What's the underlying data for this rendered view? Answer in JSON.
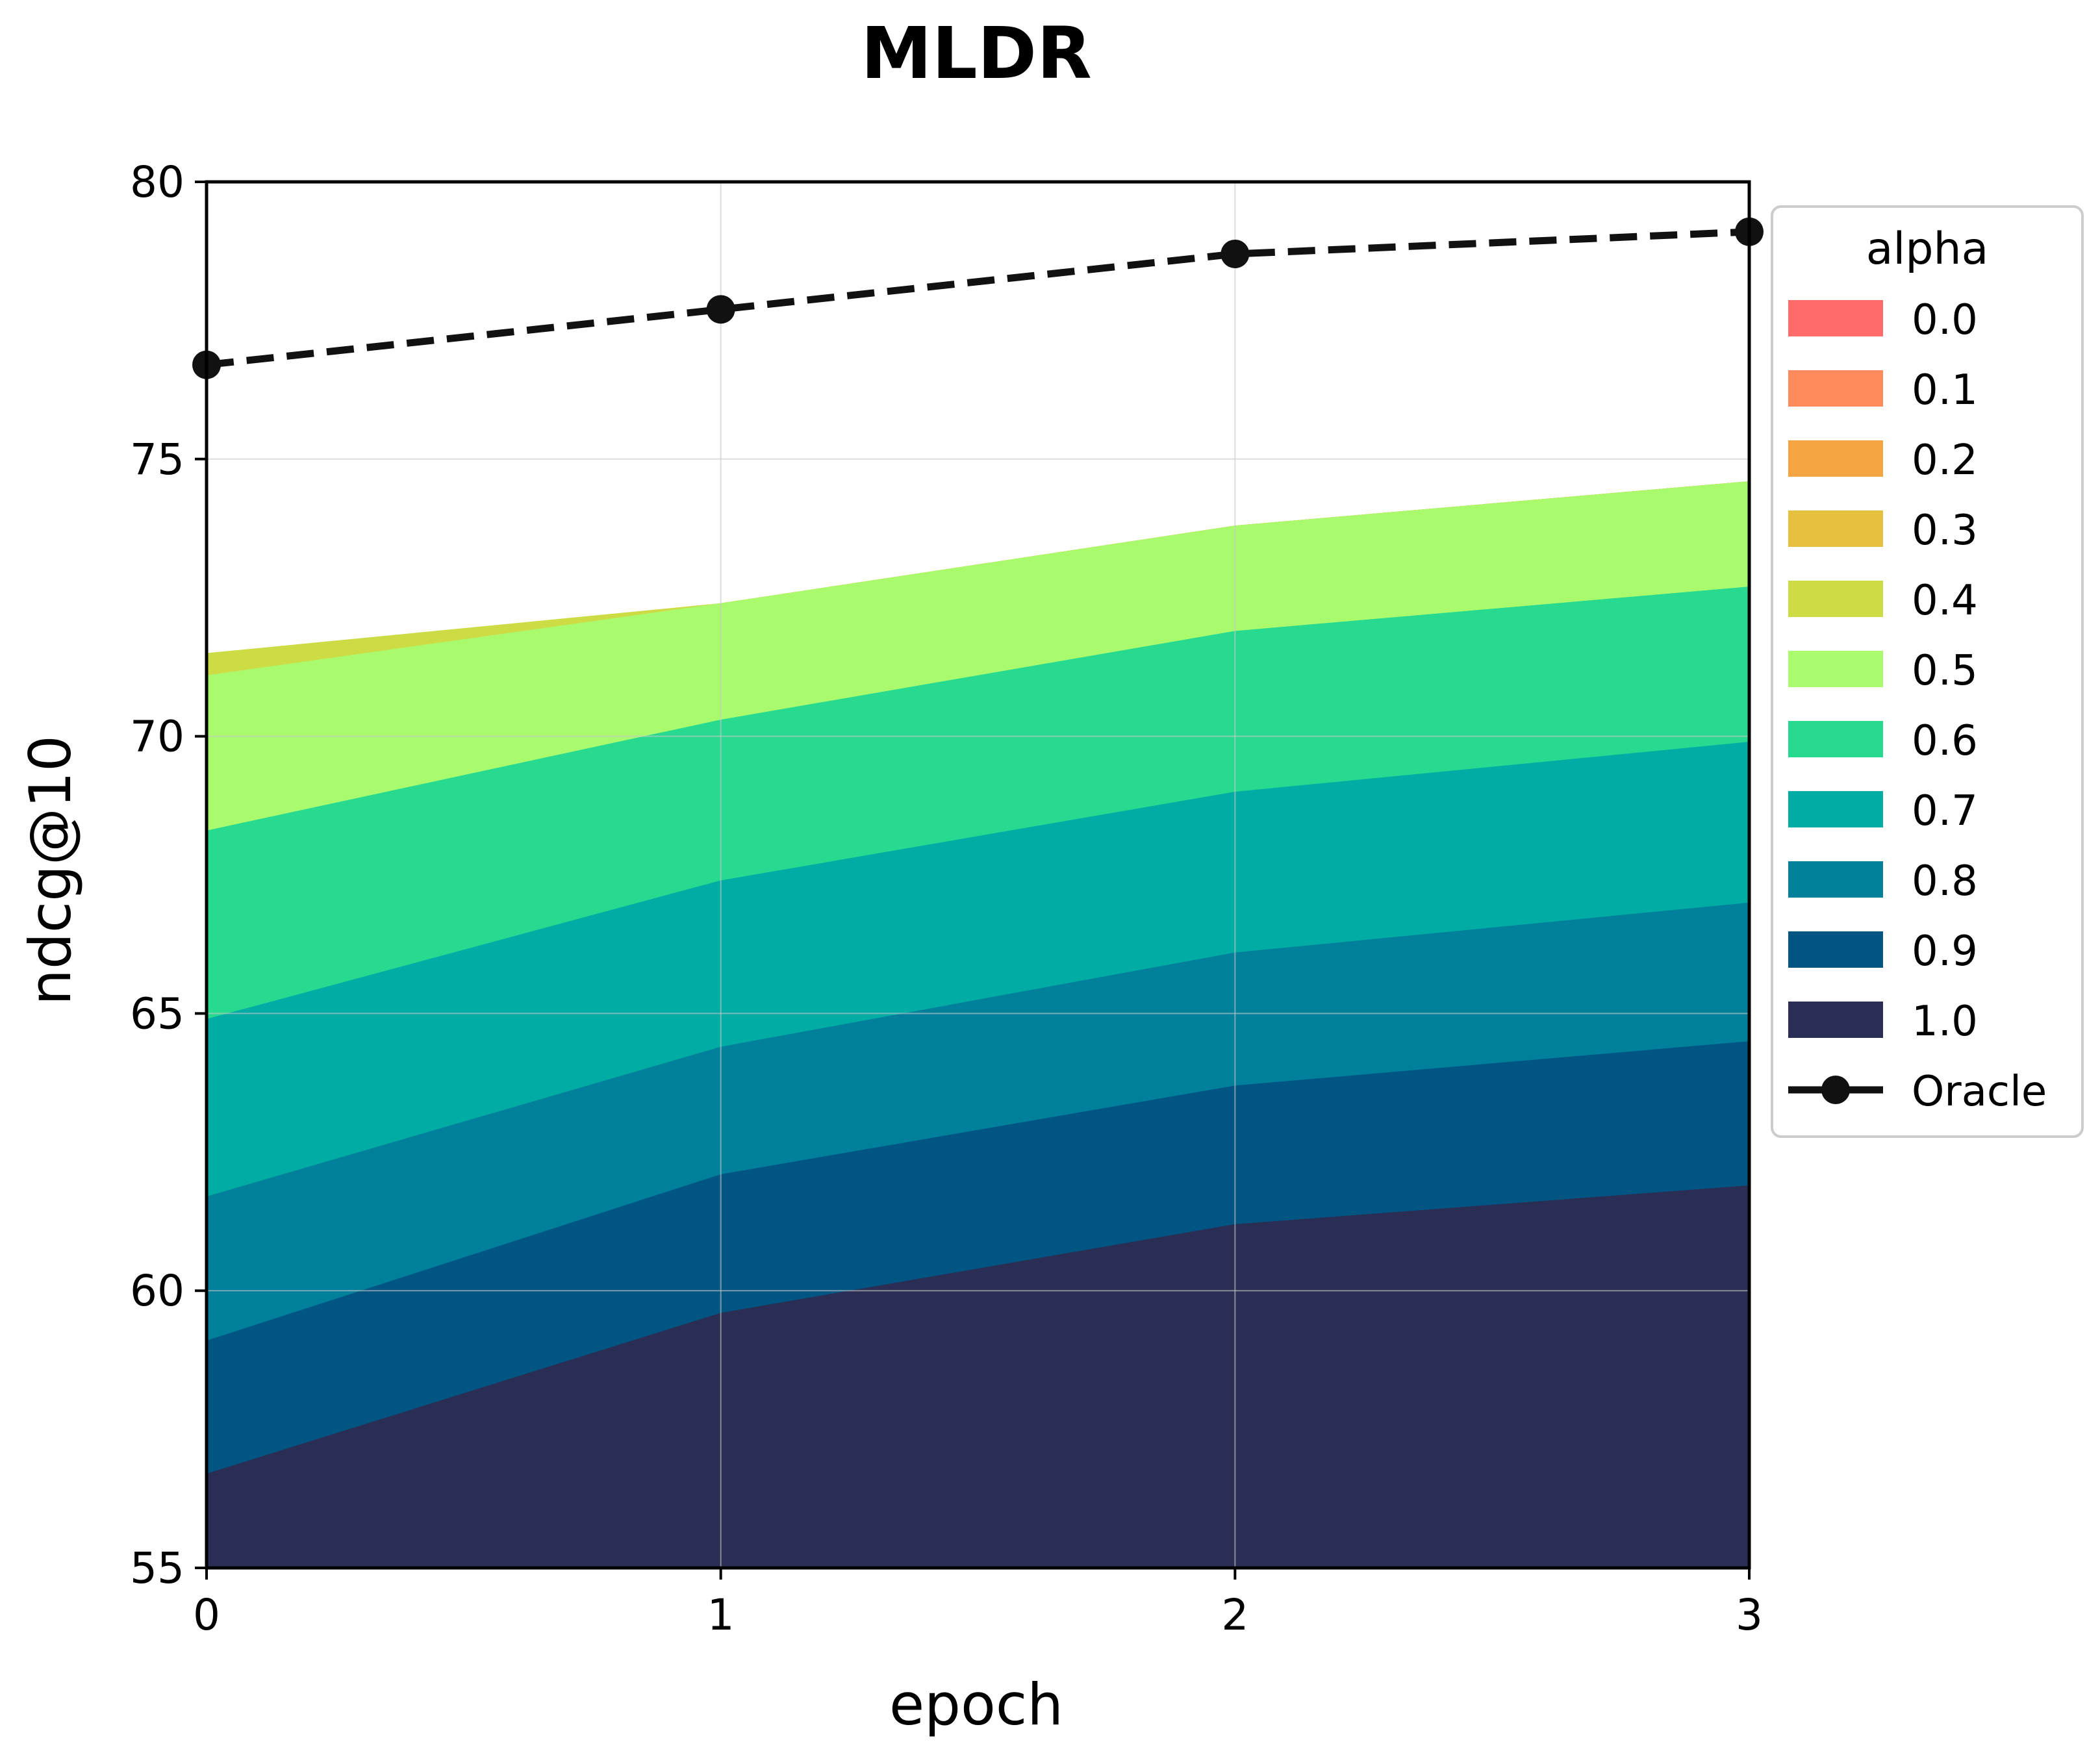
{
  "chart_data": {
    "type": "area",
    "title": "MLDR",
    "xlabel": "epoch",
    "ylabel": "ndcg@10",
    "x": [
      0,
      1,
      2,
      3
    ],
    "xlim": [
      0,
      3
    ],
    "ylim": [
      55,
      80
    ],
    "x_ticks": [
      "0",
      "1",
      "2",
      "3"
    ],
    "y_ticks": [
      "55",
      "60",
      "65",
      "70",
      "75",
      "80"
    ],
    "grid": true,
    "legend_position": "outside-right",
    "legend_title": "alpha",
    "series": [
      {
        "name": "0.0",
        "color": "#ff6b6b",
        "values": [
          71.1,
          72.4,
          73.8,
          74.6
        ]
      },
      {
        "name": "0.1",
        "color": "#ff8a5c",
        "values": [
          71.1,
          72.4,
          73.8,
          74.6
        ]
      },
      {
        "name": "0.2",
        "color": "#f5a442",
        "values": [
          71.1,
          72.4,
          73.8,
          74.6
        ]
      },
      {
        "name": "0.3",
        "color": "#e8c040",
        "values": [
          71.1,
          72.4,
          73.8,
          74.6
        ]
      },
      {
        "name": "0.4",
        "color": "#cddc44",
        "values": [
          71.5,
          72.4,
          73.8,
          74.6
        ]
      },
      {
        "name": "0.5",
        "color": "#aafa6e",
        "values": [
          71.1,
          72.4,
          73.8,
          74.6
        ]
      },
      {
        "name": "0.6",
        "color": "#27da90",
        "values": [
          68.3,
          70.3,
          71.9,
          72.7
        ]
      },
      {
        "name": "0.7",
        "color": "#00aca4",
        "values": [
          64.9,
          67.4,
          69.0,
          69.9
        ]
      },
      {
        "name": "0.8",
        "color": "#00809a",
        "values": [
          61.7,
          64.4,
          66.1,
          67.0
        ]
      },
      {
        "name": "0.9",
        "color": "#005583",
        "values": [
          59.1,
          62.1,
          63.7,
          64.5
        ]
      },
      {
        "name": "1.0",
        "color": "#2a2e54",
        "values": [
          56.7,
          59.6,
          61.2,
          61.9
        ]
      }
    ],
    "oracle": {
      "name": "Oracle",
      "color": "#111111",
      "values": [
        76.7,
        77.7,
        78.7,
        79.1
      ]
    }
  }
}
